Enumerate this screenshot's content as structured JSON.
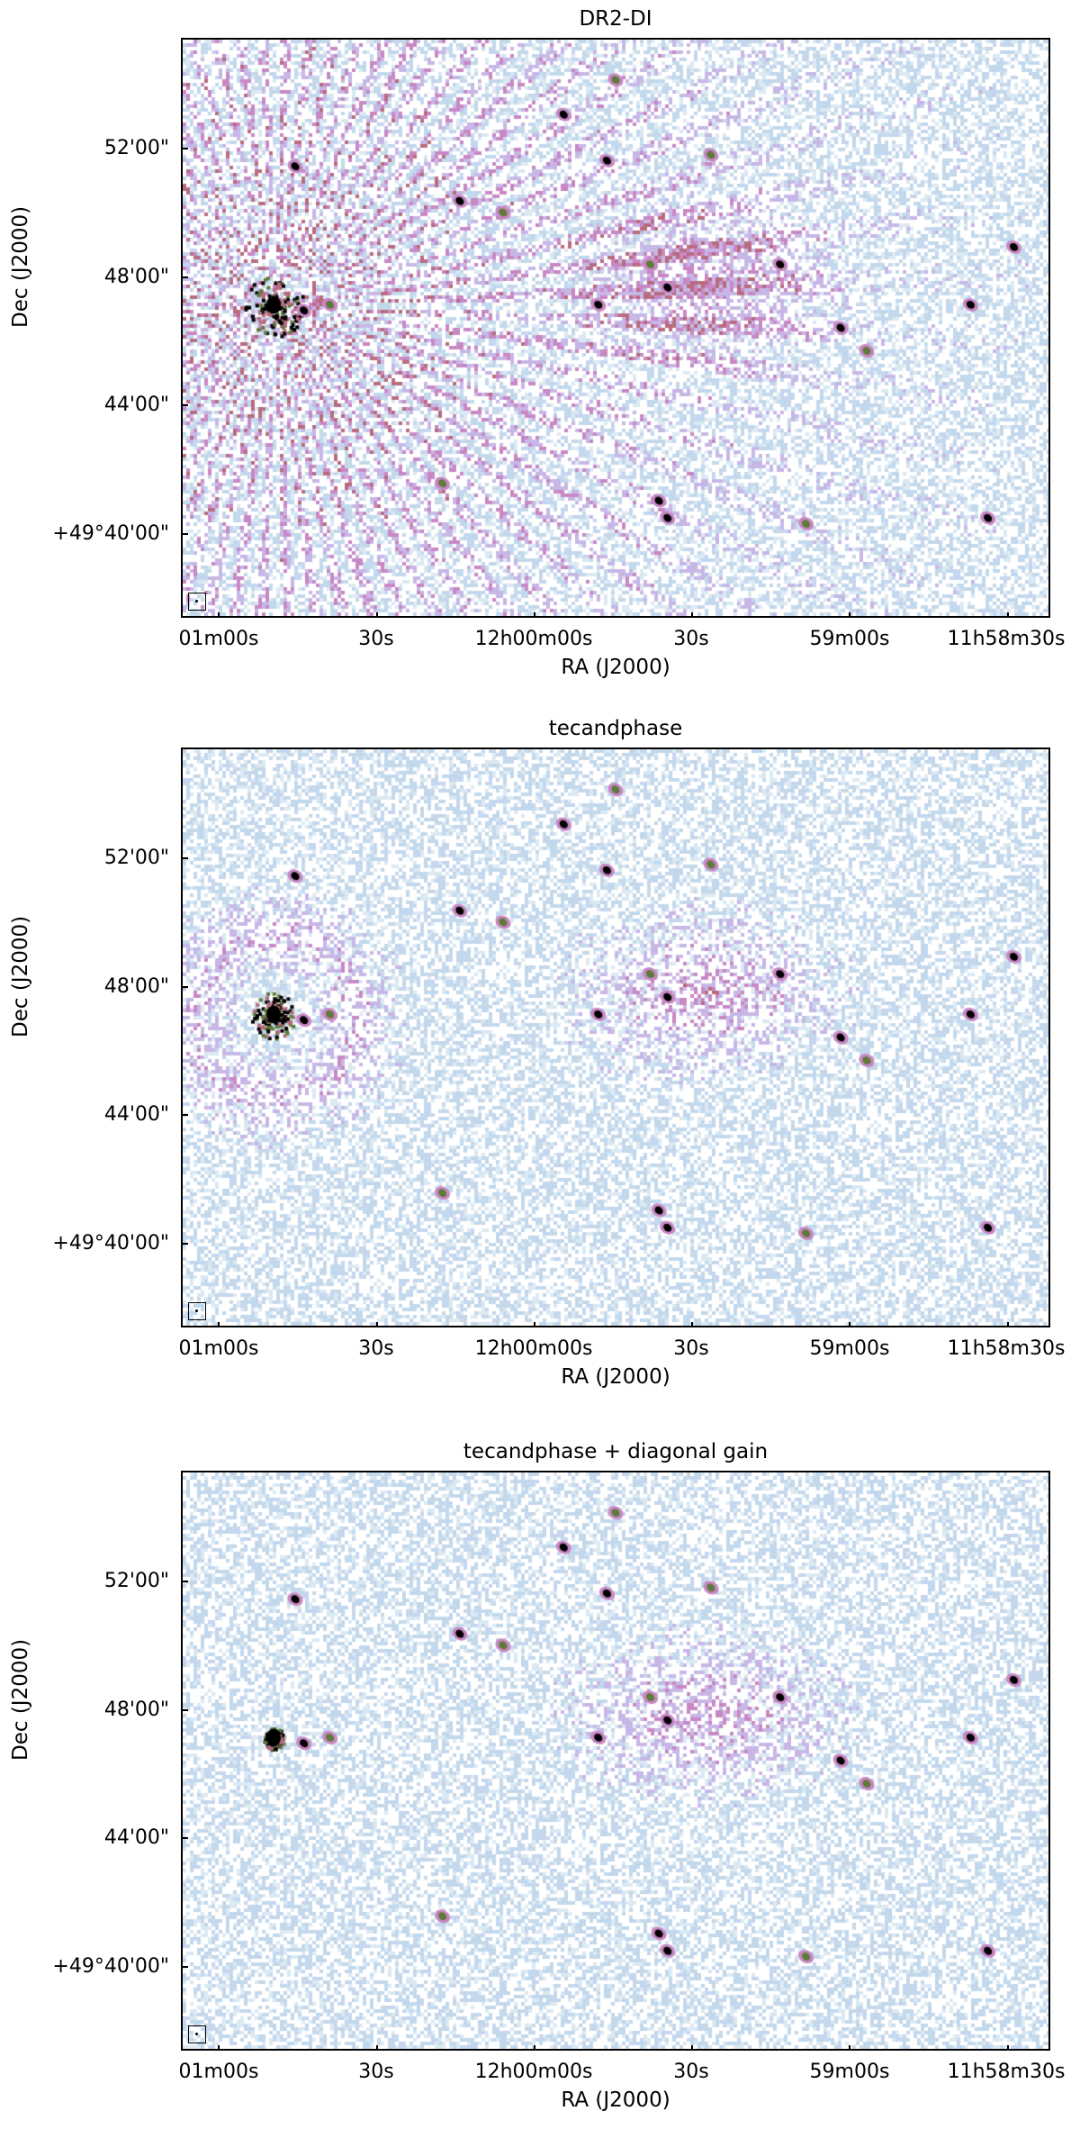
{
  "panels": [
    {
      "title": "DR2-DI",
      "xlabel": "RA (J2000)",
      "ylabel": "Dec (J2000)",
      "xticks": [
        "01m00s",
        "30s",
        "12h00m00s",
        "30s",
        "59m00s",
        "11h58m30s"
      ],
      "yticks": [
        "52'00\"",
        "48'00\"",
        "44'00\"",
        "+49°40'00\""
      ],
      "artifact_level": "strong"
    },
    {
      "title": "tecandphase",
      "xlabel": "RA (J2000)",
      "ylabel": "Dec (J2000)",
      "xticks": [
        "01m00s",
        "30s",
        "12h00m00s",
        "30s",
        "59m00s",
        "11h58m30s"
      ],
      "yticks": [
        "52'00\"",
        "48'00\"",
        "44'00\"",
        "+49°40'00\""
      ],
      "artifact_level": "medium"
    },
    {
      "title": "tecandphase + diagonal gain",
      "xlabel": "RA (J2000)",
      "ylabel": "Dec (J2000)",
      "xticks": [
        "01m00s",
        "30s",
        "12h00m00s",
        "30s",
        "59m00s",
        "11h58m30s"
      ],
      "yticks": [
        "52'00\"",
        "48'00\"",
        "44'00\"",
        "+49°40'00\""
      ],
      "artifact_level": "weak"
    }
  ],
  "colors": {
    "noise_light": "#dbe9f3",
    "noise_blue": "#c3d8ec",
    "noise_violet": "#c7b7e6",
    "emission_pink": "#c888c4",
    "emission_red": "#b86b7f",
    "core_green": "#5f7a3a",
    "core_black": "#000000"
  }
}
